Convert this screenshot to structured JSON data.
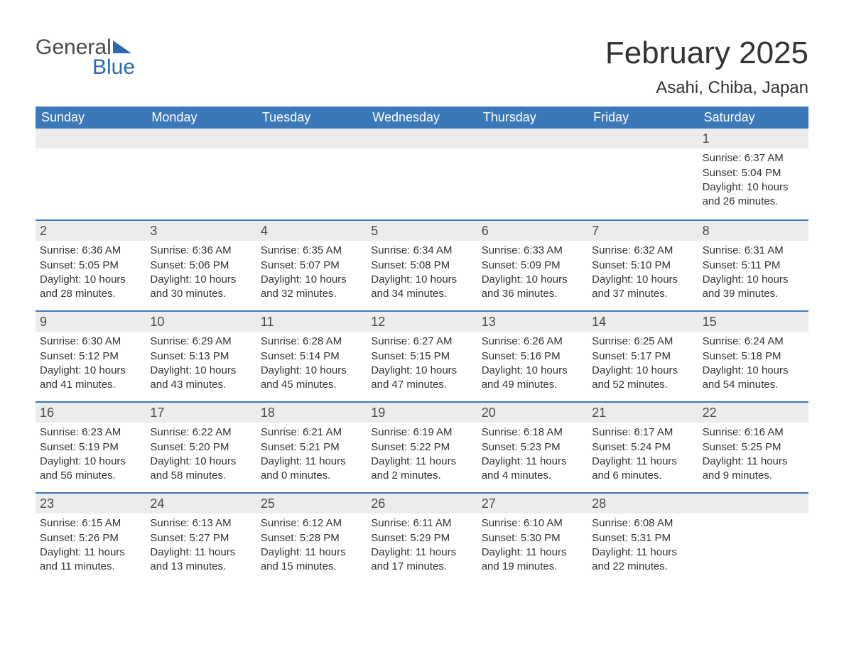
{
  "logo": {
    "text1": "General",
    "text2": "Blue"
  },
  "title": "February 2025",
  "location": "Asahi, Chiba, Japan",
  "colors": {
    "header_bg": "#3b78b9",
    "header_text": "#ffffff",
    "daynum_bg": "#ececec",
    "row_divider": "#3b78b9",
    "body_text": "#333333",
    "logo_blue": "#2a6bb0",
    "logo_gray": "#4a4a4a",
    "page_bg": "#ffffff"
  },
  "typography": {
    "title_fontsize": 44,
    "location_fontsize": 24,
    "header_fontsize": 18,
    "daynum_fontsize": 18,
    "cell_fontsize": 15
  },
  "weekdays": [
    "Sunday",
    "Monday",
    "Tuesday",
    "Wednesday",
    "Thursday",
    "Friday",
    "Saturday"
  ],
  "leading_blanks": 6,
  "days": [
    {
      "n": "1",
      "sunrise": "Sunrise: 6:37 AM",
      "sunset": "Sunset: 5:04 PM",
      "daylight": "Daylight: 10 hours and 26 minutes."
    },
    {
      "n": "2",
      "sunrise": "Sunrise: 6:36 AM",
      "sunset": "Sunset: 5:05 PM",
      "daylight": "Daylight: 10 hours and 28 minutes."
    },
    {
      "n": "3",
      "sunrise": "Sunrise: 6:36 AM",
      "sunset": "Sunset: 5:06 PM",
      "daylight": "Daylight: 10 hours and 30 minutes."
    },
    {
      "n": "4",
      "sunrise": "Sunrise: 6:35 AM",
      "sunset": "Sunset: 5:07 PM",
      "daylight": "Daylight: 10 hours and 32 minutes."
    },
    {
      "n": "5",
      "sunrise": "Sunrise: 6:34 AM",
      "sunset": "Sunset: 5:08 PM",
      "daylight": "Daylight: 10 hours and 34 minutes."
    },
    {
      "n": "6",
      "sunrise": "Sunrise: 6:33 AM",
      "sunset": "Sunset: 5:09 PM",
      "daylight": "Daylight: 10 hours and 36 minutes."
    },
    {
      "n": "7",
      "sunrise": "Sunrise: 6:32 AM",
      "sunset": "Sunset: 5:10 PM",
      "daylight": "Daylight: 10 hours and 37 minutes."
    },
    {
      "n": "8",
      "sunrise": "Sunrise: 6:31 AM",
      "sunset": "Sunset: 5:11 PM",
      "daylight": "Daylight: 10 hours and 39 minutes."
    },
    {
      "n": "9",
      "sunrise": "Sunrise: 6:30 AM",
      "sunset": "Sunset: 5:12 PM",
      "daylight": "Daylight: 10 hours and 41 minutes."
    },
    {
      "n": "10",
      "sunrise": "Sunrise: 6:29 AM",
      "sunset": "Sunset: 5:13 PM",
      "daylight": "Daylight: 10 hours and 43 minutes."
    },
    {
      "n": "11",
      "sunrise": "Sunrise: 6:28 AM",
      "sunset": "Sunset: 5:14 PM",
      "daylight": "Daylight: 10 hours and 45 minutes."
    },
    {
      "n": "12",
      "sunrise": "Sunrise: 6:27 AM",
      "sunset": "Sunset: 5:15 PM",
      "daylight": "Daylight: 10 hours and 47 minutes."
    },
    {
      "n": "13",
      "sunrise": "Sunrise: 6:26 AM",
      "sunset": "Sunset: 5:16 PM",
      "daylight": "Daylight: 10 hours and 49 minutes."
    },
    {
      "n": "14",
      "sunrise": "Sunrise: 6:25 AM",
      "sunset": "Sunset: 5:17 PM",
      "daylight": "Daylight: 10 hours and 52 minutes."
    },
    {
      "n": "15",
      "sunrise": "Sunrise: 6:24 AM",
      "sunset": "Sunset: 5:18 PM",
      "daylight": "Daylight: 10 hours and 54 minutes."
    },
    {
      "n": "16",
      "sunrise": "Sunrise: 6:23 AM",
      "sunset": "Sunset: 5:19 PM",
      "daylight": "Daylight: 10 hours and 56 minutes."
    },
    {
      "n": "17",
      "sunrise": "Sunrise: 6:22 AM",
      "sunset": "Sunset: 5:20 PM",
      "daylight": "Daylight: 10 hours and 58 minutes."
    },
    {
      "n": "18",
      "sunrise": "Sunrise: 6:21 AM",
      "sunset": "Sunset: 5:21 PM",
      "daylight": "Daylight: 11 hours and 0 minutes."
    },
    {
      "n": "19",
      "sunrise": "Sunrise: 6:19 AM",
      "sunset": "Sunset: 5:22 PM",
      "daylight": "Daylight: 11 hours and 2 minutes."
    },
    {
      "n": "20",
      "sunrise": "Sunrise: 6:18 AM",
      "sunset": "Sunset: 5:23 PM",
      "daylight": "Daylight: 11 hours and 4 minutes."
    },
    {
      "n": "21",
      "sunrise": "Sunrise: 6:17 AM",
      "sunset": "Sunset: 5:24 PM",
      "daylight": "Daylight: 11 hours and 6 minutes."
    },
    {
      "n": "22",
      "sunrise": "Sunrise: 6:16 AM",
      "sunset": "Sunset: 5:25 PM",
      "daylight": "Daylight: 11 hours and 9 minutes."
    },
    {
      "n": "23",
      "sunrise": "Sunrise: 6:15 AM",
      "sunset": "Sunset: 5:26 PM",
      "daylight": "Daylight: 11 hours and 11 minutes."
    },
    {
      "n": "24",
      "sunrise": "Sunrise: 6:13 AM",
      "sunset": "Sunset: 5:27 PM",
      "daylight": "Daylight: 11 hours and 13 minutes."
    },
    {
      "n": "25",
      "sunrise": "Sunrise: 6:12 AM",
      "sunset": "Sunset: 5:28 PM",
      "daylight": "Daylight: 11 hours and 15 minutes."
    },
    {
      "n": "26",
      "sunrise": "Sunrise: 6:11 AM",
      "sunset": "Sunset: 5:29 PM",
      "daylight": "Daylight: 11 hours and 17 minutes."
    },
    {
      "n": "27",
      "sunrise": "Sunrise: 6:10 AM",
      "sunset": "Sunset: 5:30 PM",
      "daylight": "Daylight: 11 hours and 19 minutes."
    },
    {
      "n": "28",
      "sunrise": "Sunrise: 6:08 AM",
      "sunset": "Sunset: 5:31 PM",
      "daylight": "Daylight: 11 hours and 22 minutes."
    }
  ]
}
